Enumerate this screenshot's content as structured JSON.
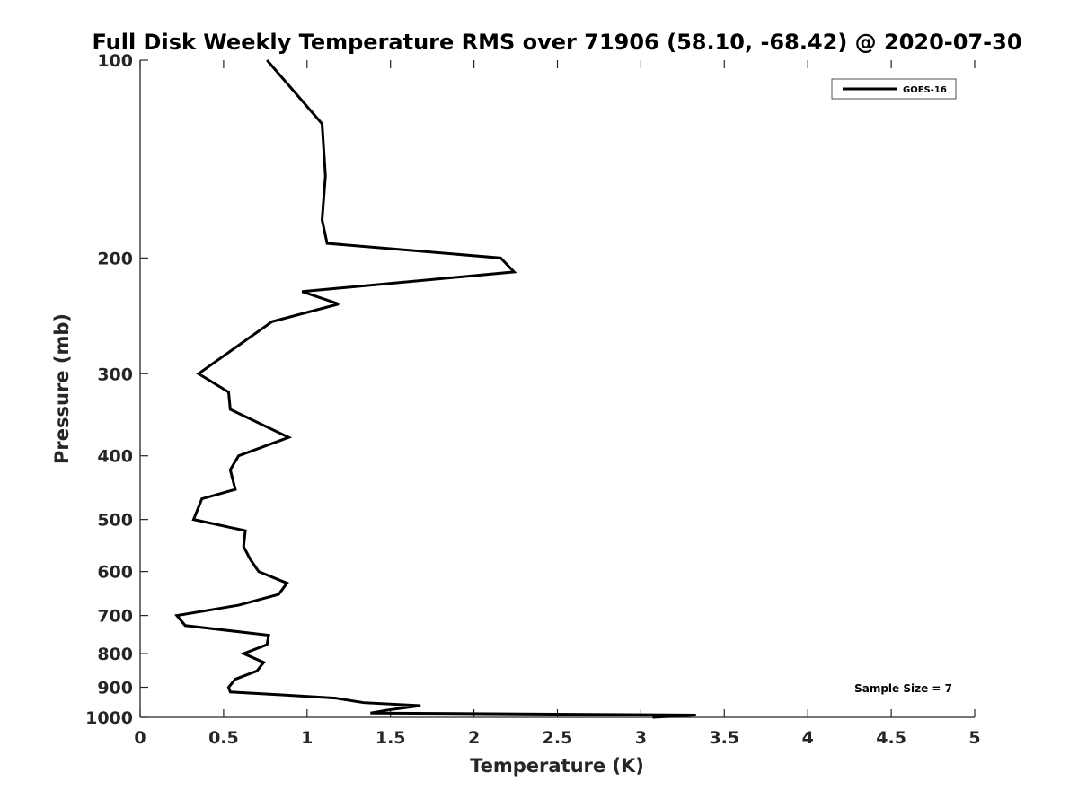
{
  "chart_data": {
    "type": "line",
    "title": "Full Disk Weekly Temperature RMS over 71906 (58.10, -68.42) @ 2020-07-30",
    "xlabel": "Temperature (K)",
    "ylabel": "Pressure (mb)",
    "xlim": [
      0,
      5
    ],
    "ylim": [
      100,
      1000
    ],
    "y_scale": "log",
    "y_reversed": true,
    "x_ticks": [
      "0",
      "0.5",
      "1",
      "1.5",
      "2",
      "2.5",
      "3",
      "3.5",
      "4",
      "4.5",
      "5"
    ],
    "y_ticks": [
      "100",
      "200",
      "300",
      "400",
      "500",
      "600",
      "700",
      "800",
      "900",
      "1000"
    ],
    "grid": false,
    "legend_position": "top-right",
    "annotation": "Sample Size = 7",
    "series": [
      {
        "name": "GOES-16",
        "color": "#000000",
        "x": [
          0.76,
          1.09,
          1.11,
          1.09,
          1.12,
          2.16,
          2.24,
          0.97,
          1.19,
          0.79,
          0.35,
          0.53,
          0.54,
          0.89,
          0.59,
          0.54,
          0.57,
          0.37,
          0.32,
          0.63,
          0.62,
          0.66,
          0.71,
          0.88,
          0.83,
          0.59,
          0.22,
          0.27,
          0.77,
          0.76,
          0.62,
          0.74,
          0.7,
          0.57,
          0.53,
          0.54,
          0.87,
          1.17,
          1.34,
          1.68,
          1.48,
          1.38,
          3.33,
          3.07
        ],
        "y": [
          100,
          125,
          150,
          175,
          190,
          200,
          210,
          225,
          235,
          250,
          300,
          320,
          340,
          375,
          400,
          420,
          450,
          465,
          500,
          520,
          550,
          575,
          600,
          625,
          650,
          675,
          700,
          725,
          750,
          775,
          800,
          825,
          850,
          875,
          900,
          915,
          925,
          935,
          950,
          960,
          975,
          985,
          992,
          1000
        ]
      }
    ]
  }
}
